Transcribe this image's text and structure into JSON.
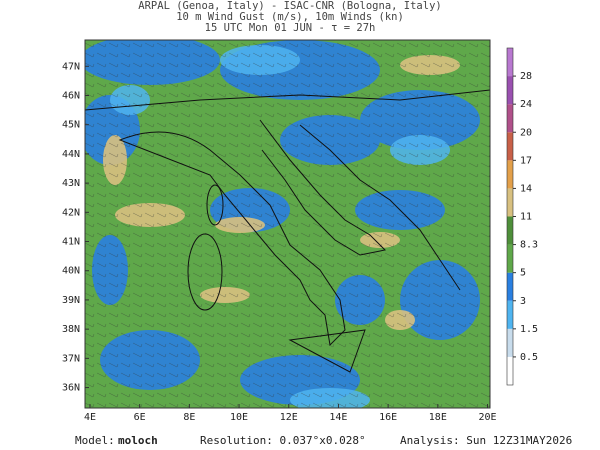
{
  "header": {
    "lines": [
      "ARPAL (Genoa, Italy)  -  ISAC-CNR (Bologna, Italy)",
      "10 m Wind Gust (m/s), 10m Winds (kn)",
      "15 UTC Mon 01 JUN  -  τ = 27h"
    ]
  },
  "map": {
    "lon_range": [
      3.8,
      20.1
    ],
    "lat_range": [
      35.3,
      47.9
    ],
    "lon_ticks": [
      {
        "value": 4,
        "label": "4E"
      },
      {
        "value": 6,
        "label": "6E"
      },
      {
        "value": 8,
        "label": "8E"
      },
      {
        "value": 10,
        "label": "10E"
      },
      {
        "value": 12,
        "label": "12E"
      },
      {
        "value": 14,
        "label": "14E"
      },
      {
        "value": 16,
        "label": "16E"
      },
      {
        "value": 18,
        "label": "18E"
      },
      {
        "value": 20,
        "label": "20E"
      }
    ],
    "lat_ticks": [
      {
        "value": 36,
        "label": "36N"
      },
      {
        "value": 37,
        "label": "37N"
      },
      {
        "value": 38,
        "label": "38N"
      },
      {
        "value": 39,
        "label": "39N"
      },
      {
        "value": 40,
        "label": "40N"
      },
      {
        "value": 41,
        "label": "41N"
      },
      {
        "value": 42,
        "label": "42N"
      },
      {
        "value": 43,
        "label": "43N"
      },
      {
        "value": 44,
        "label": "44N"
      },
      {
        "value": 45,
        "label": "45N"
      },
      {
        "value": 46,
        "label": "46N"
      },
      {
        "value": 47,
        "label": "47N"
      }
    ],
    "colorbar": {
      "ticks": [
        0.5,
        1.5,
        3,
        5,
        8.3,
        11,
        14,
        17,
        20,
        24,
        28
      ],
      "colors": [
        "#ffffff",
        "#c8dcec",
        "#4fb4f0",
        "#2a7fe0",
        "#5fa84a",
        "#4e8f3a",
        "#d8c080",
        "#e3a04a",
        "#c86048",
        "#b0508a",
        "#9a50b0",
        "#b878d0"
      ]
    }
  },
  "footer": {
    "model_label": "Model:",
    "model": "moloch",
    "resolution": "Resolution: 0.037°x0.028°",
    "analysis": "Analysis: Sun 12Z31MAY2026"
  }
}
